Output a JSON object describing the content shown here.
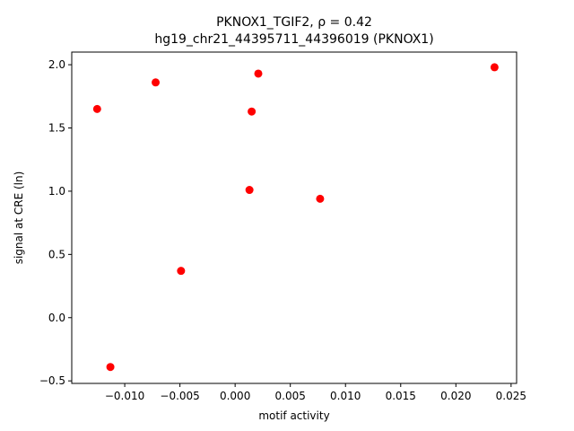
{
  "chart_data": {
    "type": "scatter",
    "title_line1": "PKNOX1_TGIF2, ρ = 0.42",
    "title_line2": "hg19_chr21_44395711_44396019 (PKNOX1)",
    "xlabel": "motif activity",
    "ylabel": "signal at CRE (ln)",
    "xlim": [
      -0.0148,
      0.0255
    ],
    "ylim": [
      -0.52,
      2.1
    ],
    "xticks": [
      -0.01,
      -0.005,
      0.0,
      0.005,
      0.01,
      0.015,
      0.02,
      0.025
    ],
    "xtick_labels": [
      "−0.010",
      "−0.005",
      "0.000",
      "0.005",
      "0.010",
      "0.015",
      "0.020",
      "0.025"
    ],
    "yticks": [
      -0.5,
      0.0,
      0.5,
      1.0,
      1.5,
      2.0
    ],
    "ytick_labels": [
      "−0.5",
      "0.0",
      "0.5",
      "1.0",
      "1.5",
      "2.0"
    ],
    "marker_color": "#ff0000",
    "grid": false,
    "points": [
      {
        "x": -0.0125,
        "y": 1.65
      },
      {
        "x": -0.0113,
        "y": -0.39
      },
      {
        "x": -0.0072,
        "y": 1.86
      },
      {
        "x": -0.0049,
        "y": 0.37
      },
      {
        "x": 0.0013,
        "y": 1.01
      },
      {
        "x": 0.0015,
        "y": 1.63
      },
      {
        "x": 0.0021,
        "y": 1.93
      },
      {
        "x": 0.0077,
        "y": 0.94
      },
      {
        "x": 0.0235,
        "y": 1.98
      }
    ]
  }
}
